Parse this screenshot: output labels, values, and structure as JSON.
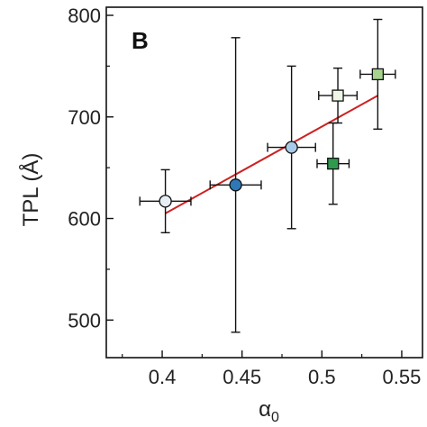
{
  "chart_data": {
    "type": "scatter",
    "panel_label": "B",
    "xlabel_main": "α",
    "xlabel_sub": "0",
    "ylabel": "TPL (Å)",
    "xlim": [
      0.365,
      0.563
    ],
    "ylim": [
      463,
      808
    ],
    "x_ticks": [
      {
        "value": 0.4,
        "label": "0.4"
      },
      {
        "value": 0.45,
        "label": "0.45"
      },
      {
        "value": 0.5,
        "label": "0.5"
      },
      {
        "value": 0.55,
        "label": "0.55"
      }
    ],
    "y_ticks": [
      {
        "value": 500,
        "label": "500"
      },
      {
        "value": 600,
        "label": "600"
      },
      {
        "value": 700,
        "label": "700"
      },
      {
        "value": 800,
        "label": "800"
      }
    ],
    "x_minor_ticks": [
      0.375,
      0.425,
      0.475,
      0.525
    ],
    "y_minor_ticks": [
      550,
      650,
      750
    ],
    "points": [
      {
        "x": 0.402,
        "y": 617,
        "xerr": 0.016,
        "yerr_low": 31,
        "yerr_high": 31,
        "marker": "circle",
        "fill": "#e8eef6"
      },
      {
        "x": 0.446,
        "y": 633,
        "xerr": 0.016,
        "yerr_low": 145,
        "yerr_high": 145,
        "marker": "circle",
        "fill": "#2f78b8"
      },
      {
        "x": 0.481,
        "y": 670,
        "xerr": 0.015,
        "yerr_low": 80,
        "yerr_high": 80,
        "marker": "circle",
        "fill": "#a9cbea"
      },
      {
        "x": 0.507,
        "y": 654,
        "xerr": 0.01,
        "yerr_low": 40,
        "yerr_high": 40,
        "marker": "square",
        "fill": "#2e9a4e"
      },
      {
        "x": 0.51,
        "y": 721,
        "xerr": 0.012,
        "yerr_low": 27,
        "yerr_high": 27,
        "marker": "square",
        "fill": "#eef6e6"
      },
      {
        "x": 0.535,
        "y": 742,
        "xerr": 0.011,
        "yerr_low": 54,
        "yerr_high": 54,
        "marker": "square",
        "fill": "#a6d48e"
      }
    ],
    "fit_line": {
      "x": [
        0.402,
        0.535
      ],
      "y": [
        605,
        721
      ],
      "color": "#cc2222"
    }
  }
}
